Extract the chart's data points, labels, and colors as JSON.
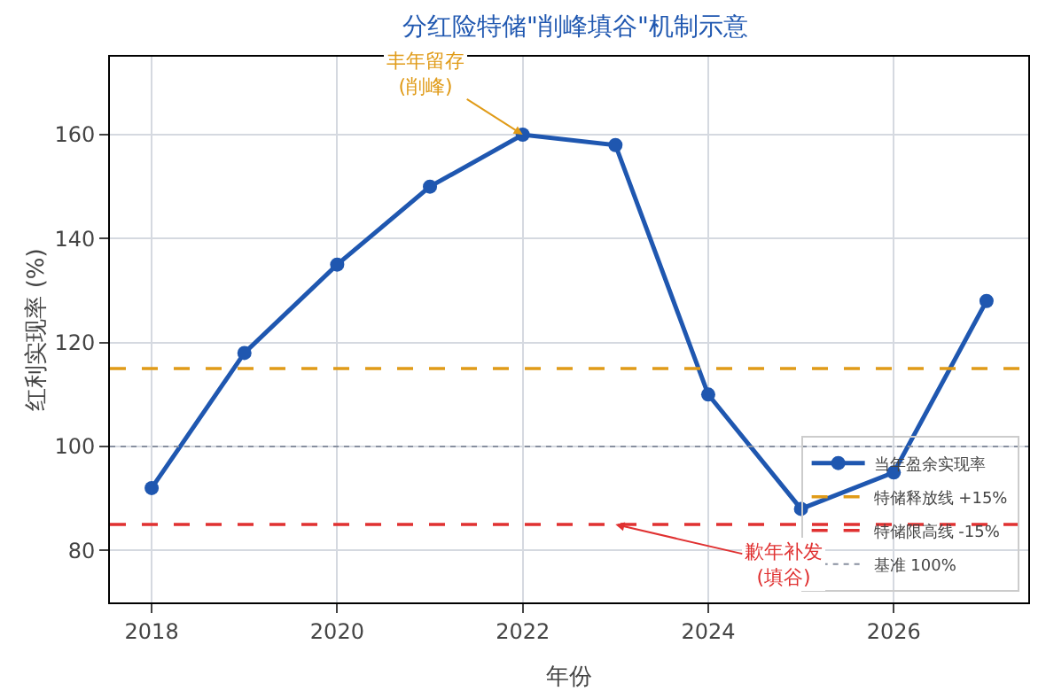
{
  "chart_data": {
    "type": "line",
    "title": "分红险特储\"削峰填谷\"机制示意",
    "xlabel": "年份",
    "ylabel": "红利实现率 (%)",
    "x": [
      2018,
      2019,
      2020,
      2021,
      2022,
      2023,
      2024,
      2025,
      2026,
      2027
    ],
    "series": [
      {
        "name": "当年盈余实现率",
        "color": "#1f57b0",
        "values": [
          92,
          118,
          135,
          150,
          160,
          158,
          110,
          88,
          95,
          128
        ]
      }
    ],
    "xlim": [
      2017.55,
      2027.45
    ],
    "xticks": [
      2018,
      2020,
      2022,
      2024,
      2026
    ],
    "ylim": [
      70,
      175
    ],
    "yticks": [
      80,
      100,
      120,
      140,
      160
    ],
    "ref_lines": [
      {
        "axis": "y",
        "value": 115,
        "label": "特储释放线 +15%",
        "color": "#e09b18",
        "line_style": "dashed"
      },
      {
        "axis": "y",
        "value": 85,
        "label": "特储限高线 -15%",
        "color": "#e03131",
        "line_style": "dashed"
      },
      {
        "axis": "y",
        "value": 100,
        "label": "基准 100%",
        "color": "#8890a0",
        "line_style": "dotted"
      }
    ],
    "annotations": [
      {
        "text": "丰年留存\n(削峰)",
        "x": 2022,
        "y": 160
      },
      {
        "text": "歉年补发\n(填谷)",
        "x": 2023,
        "y": 85
      }
    ],
    "grid": true,
    "legend": "bottom right",
    "marker": "circle",
    "line_style": "solid"
  }
}
